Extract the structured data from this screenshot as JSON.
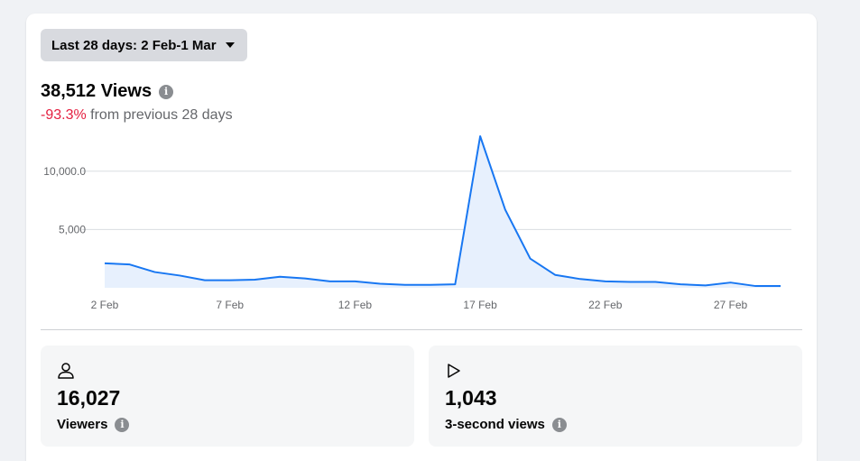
{
  "date_range": {
    "label": "Last 28 days: 2 Feb-1 Mar"
  },
  "summary": {
    "title": "38,512 Views",
    "change": "-93.3%",
    "change_suffix": "from previous 28 days"
  },
  "colors": {
    "line": "#1877f2",
    "fill": "#e7f0fd",
    "negative": "#e41e3f"
  },
  "chart_data": {
    "type": "area",
    "title": "",
    "xlabel": "",
    "ylabel": "",
    "ylim": [
      0,
      13000
    ],
    "yticks": [
      {
        "value": 10000,
        "label": "10,000.0"
      },
      {
        "value": 5000,
        "label": "5,000"
      }
    ],
    "grid": true,
    "x_tick_labels": [
      "2 Feb",
      "7 Feb",
      "12 Feb",
      "17 Feb",
      "22 Feb",
      "27 Feb"
    ],
    "x_tick_index": [
      0,
      5,
      10,
      15,
      20,
      25
    ],
    "x": [
      "2 Feb",
      "3 Feb",
      "4 Feb",
      "5 Feb",
      "6 Feb",
      "7 Feb",
      "8 Feb",
      "9 Feb",
      "10 Feb",
      "11 Feb",
      "12 Feb",
      "13 Feb",
      "14 Feb",
      "15 Feb",
      "16 Feb",
      "17 Feb",
      "18 Feb",
      "19 Feb",
      "20 Feb",
      "21 Feb",
      "22 Feb",
      "23 Feb",
      "24 Feb",
      "25 Feb",
      "26 Feb",
      "27 Feb",
      "28 Feb",
      "1 Mar"
    ],
    "series": [
      {
        "values": [
          2100,
          2000,
          1350,
          1050,
          650,
          650,
          700,
          950,
          800,
          550,
          550,
          350,
          250,
          250,
          300,
          13000,
          6700,
          2500,
          1100,
          750,
          550,
          500,
          500,
          300,
          200,
          450,
          150,
          150
        ]
      }
    ]
  },
  "stats": [
    {
      "icon": "person-icon",
      "value": "16,027",
      "label": "Viewers"
    },
    {
      "icon": "play-icon",
      "value": "1,043",
      "label": "3-second views"
    }
  ]
}
